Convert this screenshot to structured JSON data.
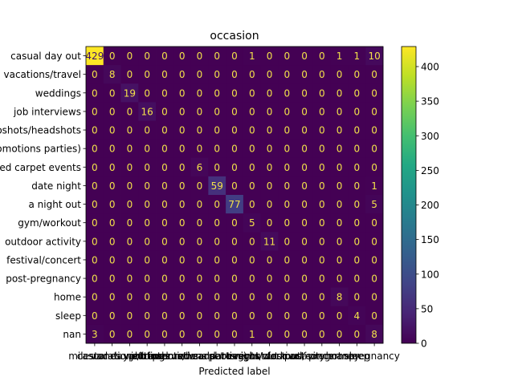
{
  "chart_data": {
    "type": "heatmap",
    "title": "occasion",
    "xlabel": "Predicted label",
    "ylabel": "",
    "row_labels": [
      "casual day out",
      "vacations/travel",
      "weddings",
      "job interviews",
      "photoshots/headshots",
      "promotions parties)",
      "red carpet events",
      "date night",
      "a night out",
      "gym/workout",
      "outdoor activity",
      "festival/concert",
      "post-pregnancy",
      "home",
      "sleep",
      "nan"
    ],
    "col_labels": [
      "milestones",
      "casual day out",
      "vacations/travel",
      "weddings",
      "job interviews",
      "photoshots/headshots",
      "promotions parties)",
      "red carpet events",
      "date night",
      "a night out",
      "gym/workout",
      "outdoor activity",
      "festival/concert",
      "post-pregnancy",
      "home",
      "sleep",
      "pregnancy"
    ],
    "col_labels_note": "x tick labels overlap and are largely illegible in the original",
    "values": [
      [
        429,
        0,
        0,
        0,
        0,
        0,
        0,
        0,
        0,
        1,
        0,
        0,
        0,
        0,
        1,
        1,
        10
      ],
      [
        0,
        8,
        0,
        0,
        0,
        0,
        0,
        0,
        0,
        0,
        0,
        0,
        0,
        0,
        0,
        0,
        0
      ],
      [
        0,
        0,
        19,
        0,
        0,
        0,
        0,
        0,
        0,
        0,
        0,
        0,
        0,
        0,
        0,
        0,
        0
      ],
      [
        0,
        0,
        0,
        16,
        0,
        0,
        0,
        0,
        0,
        0,
        0,
        0,
        0,
        0,
        0,
        0,
        0
      ],
      [
        0,
        0,
        0,
        0,
        0,
        0,
        0,
        0,
        0,
        0,
        0,
        0,
        0,
        0,
        0,
        0,
        0
      ],
      [
        0,
        0,
        0,
        0,
        0,
        0,
        0,
        0,
        0,
        0,
        0,
        0,
        0,
        0,
        0,
        0,
        0
      ],
      [
        0,
        0,
        0,
        0,
        0,
        0,
        6,
        0,
        0,
        0,
        0,
        0,
        0,
        0,
        0,
        0,
        0
      ],
      [
        0,
        0,
        0,
        0,
        0,
        0,
        0,
        59,
        0,
        0,
        0,
        0,
        0,
        0,
        0,
        0,
        1
      ],
      [
        0,
        0,
        0,
        0,
        0,
        0,
        0,
        0,
        77,
        0,
        0,
        0,
        0,
        0,
        0,
        0,
        5
      ],
      [
        0,
        0,
        0,
        0,
        0,
        0,
        0,
        0,
        0,
        5,
        0,
        0,
        0,
        0,
        0,
        0,
        0
      ],
      [
        0,
        0,
        0,
        0,
        0,
        0,
        0,
        0,
        0,
        0,
        11,
        0,
        0,
        0,
        0,
        0,
        0
      ],
      [
        0,
        0,
        0,
        0,
        0,
        0,
        0,
        0,
        0,
        0,
        0,
        0,
        0,
        0,
        0,
        0,
        0
      ],
      [
        0,
        0,
        0,
        0,
        0,
        0,
        0,
        0,
        0,
        0,
        0,
        0,
        0,
        0,
        0,
        0,
        0
      ],
      [
        0,
        0,
        0,
        0,
        0,
        0,
        0,
        0,
        0,
        0,
        0,
        0,
        0,
        0,
        8,
        0,
        0
      ],
      [
        0,
        0,
        0,
        0,
        0,
        0,
        0,
        0,
        0,
        0,
        0,
        0,
        0,
        0,
        0,
        4,
        0
      ],
      [
        3,
        0,
        0,
        0,
        0,
        0,
        0,
        0,
        0,
        1,
        0,
        0,
        0,
        0,
        0,
        0,
        8
      ]
    ],
    "colorbar": {
      "min": 0,
      "max": 429,
      "ticks": [
        0,
        50,
        100,
        150,
        200,
        250,
        300,
        350,
        400
      ],
      "colormap": "viridis"
    },
    "colors": {
      "low_text": "#f3e24a",
      "high_text": "#3b0f70"
    }
  }
}
